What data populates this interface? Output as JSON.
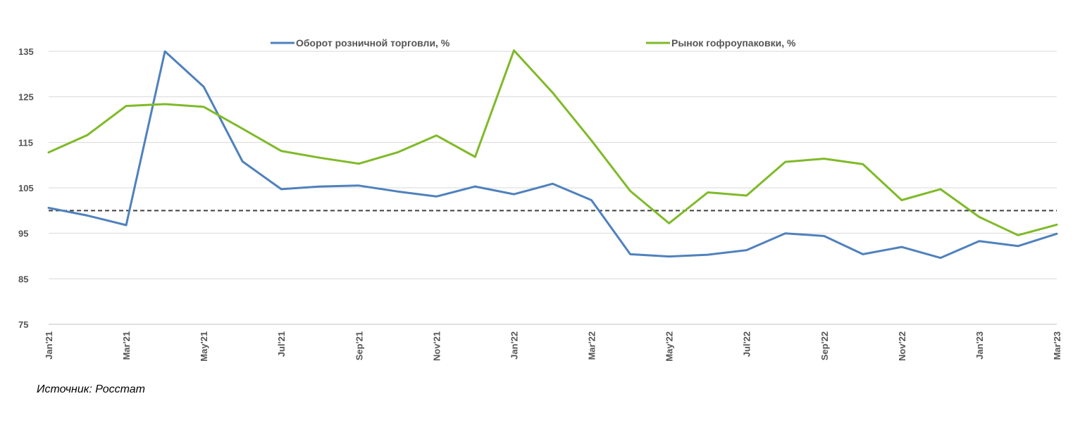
{
  "chart_data": {
    "type": "line",
    "x": [
      "Jan'21",
      "Feb'21",
      "Mar'21",
      "Apr'21",
      "May'21",
      "Jun'21",
      "Jul'21",
      "Aug'21",
      "Sep'21",
      "Oct'21",
      "Nov'21",
      "Dec'21",
      "Jan'22",
      "Feb'22",
      "Mar'22",
      "Apr'22",
      "May'22",
      "Jun'22",
      "Jul'22",
      "Aug'22",
      "Sep'22",
      "Oct'22",
      "Nov'22",
      "Dec'22",
      "Jan'23",
      "Feb'23",
      "Mar'23"
    ],
    "x_tick_labels": [
      "Jan'21",
      "Mar'21",
      "May'21",
      "Jul'21",
      "Sep'21",
      "Nov'21",
      "Jan'22",
      "Mar'22",
      "May'22",
      "Jul'22",
      "Sep'22",
      "Nov'22",
      "Jan'23",
      "Mar'23"
    ],
    "ylim": [
      75,
      135
    ],
    "yticks": [
      75,
      85,
      95,
      105,
      115,
      125,
      135
    ],
    "reference_line": 100,
    "grid": true,
    "legend_position": "top",
    "series": [
      {
        "name": "Оборот розничной торговли, %",
        "color": "#4f81bd",
        "values": [
          100.6,
          98.9,
          96.8,
          135.0,
          127.2,
          110.8,
          104.7,
          105.3,
          105.5,
          104.2,
          103.1,
          105.3,
          103.6,
          105.9,
          102.3,
          90.4,
          89.9,
          90.3,
          91.3,
          95.0,
          94.4,
          90.4,
          92.0,
          89.6,
          93.3,
          92.2,
          94.9
        ]
      },
      {
        "name": "Рынок гофроупаковки, %",
        "color": "#7fba28",
        "values": [
          112.8,
          116.6,
          123.0,
          123.4,
          122.8,
          118.0,
          113.1,
          111.6,
          110.3,
          112.8,
          116.5,
          111.8,
          135.2,
          125.9,
          115.4,
          104.3,
          97.2,
          104.0,
          103.3,
          110.7,
          111.4,
          110.2,
          102.3,
          104.7,
          98.6,
          94.6,
          96.9
        ]
      }
    ]
  },
  "source_text": "Источник: Росстат"
}
